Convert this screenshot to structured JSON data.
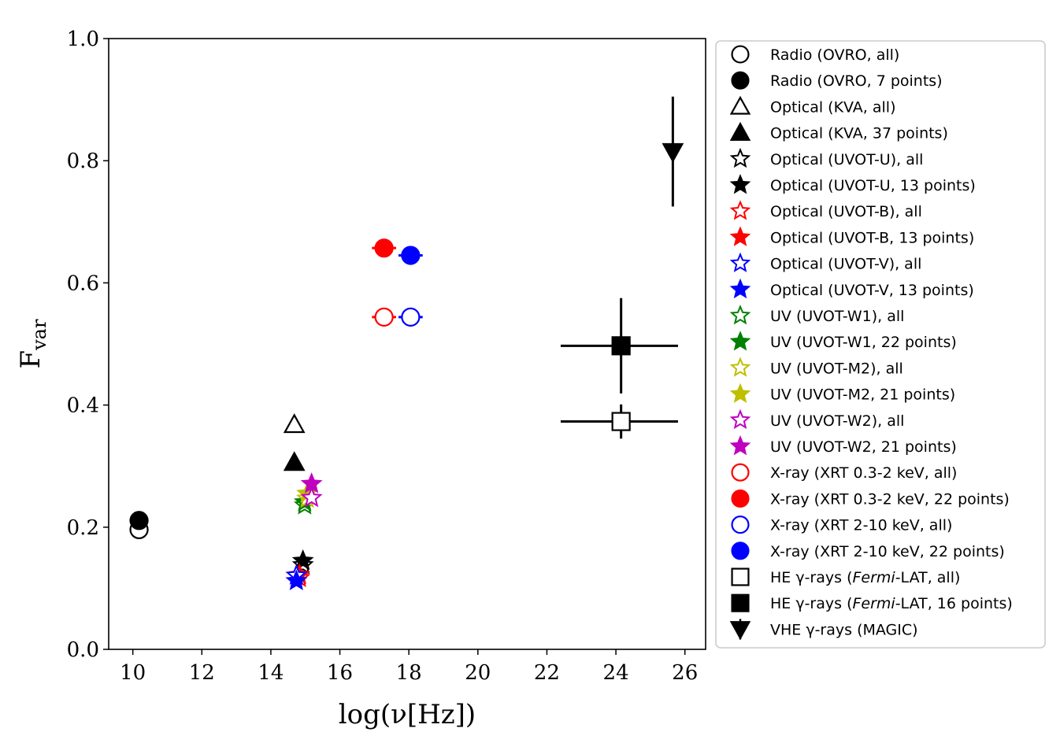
{
  "chart_data": {
    "type": "scatter",
    "title": "",
    "xlabel": "log(ν[Hz])",
    "ylabel": "F",
    "ylabel_sub": "var",
    "xlim": [
      9.3,
      26.6
    ],
    "ylim": [
      0.0,
      1.0
    ],
    "xticks": [
      10,
      12,
      14,
      16,
      18,
      20,
      22,
      24,
      26
    ],
    "xtick_labels": [
      "10",
      "12",
      "14",
      "16",
      "18",
      "20",
      "22",
      "24",
      "26"
    ],
    "yticks": [
      0.0,
      0.2,
      0.4,
      0.6,
      0.8,
      1.0
    ],
    "ytick_labels": [
      "0.0",
      "0.2",
      "0.4",
      "0.6",
      "0.8",
      "1.0"
    ],
    "grid": false,
    "legend_position": "outside-right",
    "series": [
      {
        "name": "Radio (OVRO, all)",
        "marker": "circle",
        "filled": false,
        "color": "#000000",
        "points": [
          {
            "x": 10.18,
            "y": 0.196,
            "yerr": 0.004
          }
        ]
      },
      {
        "name": "Radio (OVRO, 7 points)",
        "marker": "circle",
        "filled": true,
        "color": "#000000",
        "points": [
          {
            "x": 10.18,
            "y": 0.211,
            "yerr": 0.004
          }
        ]
      },
      {
        "name": "Optical (KVA, all)",
        "marker": "triangle-up",
        "filled": false,
        "color": "#000000",
        "points": [
          {
            "x": 14.68,
            "y": 0.368
          }
        ]
      },
      {
        "name": "Optical (KVA, 37 points)",
        "marker": "triangle-up",
        "filled": true,
        "color": "#000000",
        "points": [
          {
            "x": 14.68,
            "y": 0.306
          }
        ]
      },
      {
        "name": "Optical (UVOT-U), all",
        "marker": "star",
        "filled": false,
        "color": "#000000",
        "points": [
          {
            "x": 14.93,
            "y": 0.138
          }
        ]
      },
      {
        "name": "Optical (UVOT-U, 13 points)",
        "marker": "star",
        "filled": true,
        "color": "#000000",
        "points": [
          {
            "x": 14.93,
            "y": 0.145
          }
        ]
      },
      {
        "name": "Optical (UVOT-B), all",
        "marker": "star",
        "filled": false,
        "color": "#ff0000",
        "points": [
          {
            "x": 14.83,
            "y": 0.117
          }
        ]
      },
      {
        "name": "Optical (UVOT-B, 13 points)",
        "marker": "star",
        "filled": true,
        "color": "#ff0000",
        "points": [
          {
            "x": 14.83,
            "y": 0.122
          }
        ]
      },
      {
        "name": "Optical (UVOT-V), all",
        "marker": "star",
        "filled": false,
        "color": "#0000ff",
        "points": [
          {
            "x": 14.74,
            "y": 0.121
          }
        ]
      },
      {
        "name": "Optical (UVOT-V, 13 points)",
        "marker": "star",
        "filled": true,
        "color": "#0000ff",
        "points": [
          {
            "x": 14.74,
            "y": 0.112
          }
        ]
      },
      {
        "name": "UV (UVOT-W1), all",
        "marker": "star",
        "filled": false,
        "color": "#008000",
        "points": [
          {
            "x": 14.98,
            "y": 0.236
          }
        ]
      },
      {
        "name": "UV (UVOT-W1, 22 points)",
        "marker": "star",
        "filled": true,
        "color": "#008000",
        "points": [
          {
            "x": 14.98,
            "y": 0.241
          }
        ]
      },
      {
        "name": "UV (UVOT-M2), all",
        "marker": "star",
        "filled": false,
        "color": "#bfbf00",
        "points": [
          {
            "x": 15.05,
            "y": 0.247
          }
        ]
      },
      {
        "name": "UV (UVOT-M2, 21 points)",
        "marker": "star",
        "filled": true,
        "color": "#bfbf00",
        "points": [
          {
            "x": 15.05,
            "y": 0.255
          }
        ]
      },
      {
        "name": "UV (UVOT-W2), all",
        "marker": "star",
        "filled": false,
        "color": "#bf00bf",
        "points": [
          {
            "x": 15.18,
            "y": 0.248
          }
        ]
      },
      {
        "name": "UV (UVOT-W2, 21 points)",
        "marker": "star",
        "filled": true,
        "color": "#bf00bf",
        "points": [
          {
            "x": 15.18,
            "y": 0.271
          }
        ]
      },
      {
        "name": "X-ray (XRT 0.3-2 keV, all)",
        "marker": "circle",
        "filled": false,
        "color": "#ff0000",
        "points": [
          {
            "x": 17.28,
            "y": 0.544,
            "xerr": 0.35
          }
        ]
      },
      {
        "name": "X-ray (XRT 0.3-2 keV, 22 points)",
        "marker": "circle",
        "filled": true,
        "color": "#ff0000",
        "points": [
          {
            "x": 17.28,
            "y": 0.657,
            "xerr": 0.35
          }
        ]
      },
      {
        "name": "X-ray (XRT 2-10 keV, all)",
        "marker": "circle",
        "filled": false,
        "color": "#0000ff",
        "points": [
          {
            "x": 18.05,
            "y": 0.544,
            "xerr": 0.35
          }
        ]
      },
      {
        "name": "X-ray (XRT 2-10 keV, 22 points)",
        "marker": "circle",
        "filled": true,
        "color": "#0000ff",
        "points": [
          {
            "x": 18.05,
            "y": 0.645,
            "xerr": 0.35
          }
        ]
      },
      {
        "name": "HE γ-rays (Fermi-LAT, all)",
        "name_prefix": "HE γ-rays (",
        "name_italic": "Fermi",
        "name_suffix": "-LAT, all)",
        "marker": "square",
        "filled": false,
        "color": "#000000",
        "points": [
          {
            "x": 24.15,
            "y": 0.373,
            "xerr_low": 1.75,
            "xerr_high": 1.65,
            "yerr": 0.028
          }
        ]
      },
      {
        "name": "HE γ-rays (Fermi-LAT, 16 points)",
        "name_prefix": "HE γ-rays (",
        "name_italic": "Fermi",
        "name_suffix": "-LAT, 16 points)",
        "marker": "square",
        "filled": true,
        "color": "#000000",
        "points": [
          {
            "x": 24.15,
            "y": 0.497,
            "xerr_low": 1.75,
            "xerr_high": 1.65,
            "yerr": 0.078
          }
        ]
      },
      {
        "name": "VHE γ-rays (MAGIC)",
        "marker": "triangle-down",
        "filled": true,
        "color": "#000000",
        "points": [
          {
            "x": 25.65,
            "y": 0.815,
            "yerr": 0.09
          }
        ]
      }
    ]
  }
}
